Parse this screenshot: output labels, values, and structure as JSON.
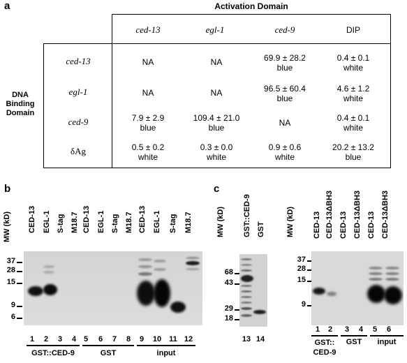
{
  "panel_a": {
    "label": "a",
    "header": "Activation Domain",
    "side_header": [
      "DNA",
      "Binding",
      "Domain"
    ],
    "columns": [
      "ced-13",
      "egl-1",
      "ced-9",
      "DIP"
    ],
    "rows": [
      {
        "name": "ced-13",
        "cells": [
          [
            "NA",
            ""
          ],
          [
            "NA",
            ""
          ],
          [
            "69.9 ± 28.2",
            "blue"
          ],
          [
            "0.4 ± 0.1",
            "white"
          ]
        ]
      },
      {
        "name": "egl-1",
        "cells": [
          [
            "NA",
            ""
          ],
          [
            "NA",
            ""
          ],
          [
            "96.5 ± 60.4",
            "blue"
          ],
          [
            "4.6 ± 1.2",
            "white"
          ]
        ]
      },
      {
        "name": "ced-9",
        "cells": [
          [
            "7.9 ± 2.9",
            "blue"
          ],
          [
            "109.4 ± 21.0",
            "blue"
          ],
          [
            "NA",
            ""
          ],
          [
            "0.4 ± 0.1",
            "white"
          ]
        ]
      },
      {
        "name": "δAg",
        "cells": [
          [
            "0.5 ± 0.2",
            "white"
          ],
          [
            "0.3 ± 0.0",
            "white"
          ],
          [
            "0.9 ± 0.6",
            "white"
          ],
          [
            "20.2 ± 13.2",
            "blue"
          ]
        ]
      }
    ]
  },
  "panel_b": {
    "label": "b",
    "mw_label": "MW (kD)",
    "markers": [
      "37",
      "28",
      "15",
      "9",
      "6"
    ],
    "lanes": [
      "CED-13",
      "EGL-1",
      "S-tag",
      "M18.7",
      "CED-13",
      "EGL-1",
      "S-tag",
      "M18.7",
      "CED-13",
      "EGL-1",
      "S-tag",
      "M18.7"
    ],
    "lane_numbers": [
      "1",
      "2",
      "3",
      "4",
      "5",
      "6",
      "7",
      "8",
      "9",
      "10",
      "11",
      "12"
    ],
    "groups": [
      "GST::CED-9",
      "GST",
      "input"
    ]
  },
  "panel_c": {
    "label": "c",
    "left": {
      "mw_label": "MW (kD)",
      "markers": [
        "68",
        "43",
        "29",
        "18"
      ],
      "lanes": [
        "GST::CED-9",
        "GST"
      ],
      "lane_numbers": [
        "13",
        "14"
      ]
    },
    "right": {
      "mw_label": "MW (kD)",
      "markers": [
        "37",
        "28",
        "15",
        "9"
      ],
      "lanes": [
        "CED-13",
        "CED-13ΔBH3",
        "CED-13",
        "CED-13ΔBH3",
        "CED-13",
        "CED-13ΔBH3"
      ],
      "lane_numbers": [
        "1",
        "2",
        "3",
        "4",
        "5",
        "6"
      ],
      "groups": [
        "GST::",
        "CED-9",
        "GST",
        "input"
      ]
    }
  }
}
